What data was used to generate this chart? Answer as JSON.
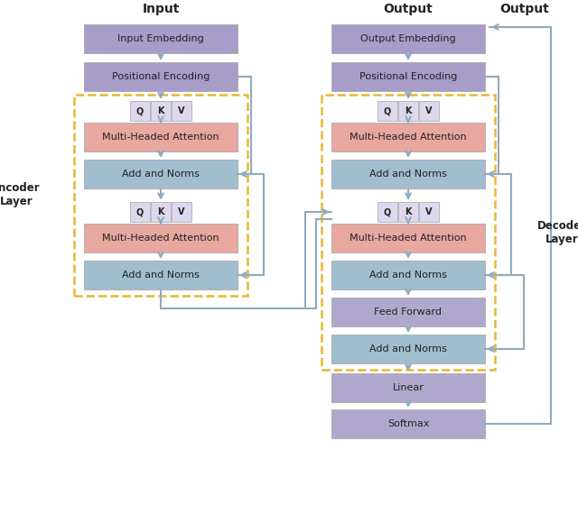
{
  "fig_width": 6.4,
  "fig_height": 5.7,
  "dpi": 100,
  "bg_color": "#ffffff",
  "colors": {
    "purple_box": "#a89cc8",
    "red_box": "#e8a8a0",
    "blue_box": "#a0bece",
    "lavender_box": "#b0a8cc",
    "qkv_box": "#ddd8ee",
    "arrow": "#90aabf",
    "dashed_border": "#e8b832",
    "text": "#222222"
  },
  "enc_boxes": [
    {
      "label": "Input Embedding",
      "col": 0,
      "row": 0,
      "color": "purple_box"
    },
    {
      "label": "Positional Encoding",
      "col": 0,
      "row": 1,
      "color": "purple_box"
    },
    {
      "label": "Multi-Headed Attention",
      "col": 0,
      "row": 3,
      "color": "red_box"
    },
    {
      "label": "Add and Norms",
      "col": 0,
      "row": 4,
      "color": "blue_box"
    },
    {
      "label": "Multi-Headed Attention",
      "col": 0,
      "row": 6,
      "color": "red_box"
    },
    {
      "label": "Add and Norms",
      "col": 0,
      "row": 7,
      "color": "blue_box"
    }
  ],
  "dec_boxes": [
    {
      "label": "Output Embedding",
      "col": 1,
      "row": 0,
      "color": "purple_box"
    },
    {
      "label": "Positional Encoding",
      "col": 1,
      "row": 1,
      "color": "purple_box"
    },
    {
      "label": "Multi-Headed Attention",
      "col": 1,
      "row": 3,
      "color": "red_box"
    },
    {
      "label": "Add and Norms",
      "col": 1,
      "row": 4,
      "color": "blue_box"
    },
    {
      "label": "Multi-Headed Attention",
      "col": 1,
      "row": 6,
      "color": "red_box"
    },
    {
      "label": "Add and Norms",
      "col": 1,
      "row": 7,
      "color": "blue_box"
    },
    {
      "label": "Feed Forward",
      "col": 1,
      "row": 8,
      "color": "lavender_box"
    },
    {
      "label": "Add and Norms",
      "col": 1,
      "row": 9,
      "color": "blue_box"
    },
    {
      "label": "Linear",
      "col": 1,
      "row": 10,
      "color": "lavender_box"
    },
    {
      "label": "Softmax",
      "col": 1,
      "row": 11,
      "color": "lavender_box"
    }
  ]
}
